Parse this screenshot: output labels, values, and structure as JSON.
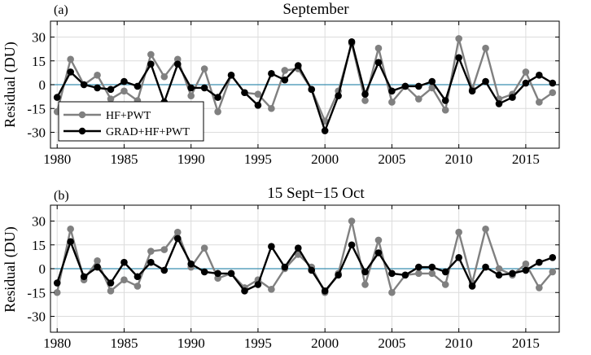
{
  "chart_data": [
    {
      "type": "line",
      "panel_label": "(a)",
      "title": "September",
      "ylabel": "Residual (DU)",
      "xlim": [
        1979.5,
        2017.5
      ],
      "ylim": [
        -40,
        40
      ],
      "xticks": [
        1980,
        1985,
        1990,
        1995,
        2000,
        2005,
        2010,
        2015
      ],
      "yticks": [
        30,
        15,
        0,
        -15,
        -30
      ],
      "grid": true,
      "zero_line_color": "#3a8fb0",
      "legend": {
        "placement": "bottom-left",
        "entries": [
          "HF+PWT",
          "GRAD+HF+PWT"
        ]
      },
      "x": [
        1980,
        1981,
        1982,
        1983,
        1984,
        1985,
        1986,
        1987,
        1988,
        1989,
        1990,
        1991,
        1992,
        1993,
        1994,
        1995,
        1996,
        1997,
        1998,
        1999,
        2000,
        2001,
        2002,
        2003,
        2004,
        2005,
        2006,
        2007,
        2008,
        2009,
        2010,
        2011,
        2012,
        2013,
        2014,
        2015,
        2016,
        2017
      ],
      "series": [
        {
          "name": "HF+PWT",
          "color": "#808080",
          "values": [
            -17,
            16,
            0,
            6,
            -9,
            -4,
            -10,
            19,
            5,
            16,
            -7,
            10,
            -17,
            6,
            -5,
            -6,
            -15,
            9,
            10,
            -3,
            -23,
            -4,
            26,
            -10,
            23,
            -11,
            -1,
            -9,
            -2,
            -16,
            29,
            -3,
            23,
            -9,
            -6,
            8,
            -11,
            -5
          ]
        },
        {
          "name": "GRAD+HF+PWT",
          "color": "#000000",
          "values": [
            -8,
            8,
            0,
            -2,
            -3,
            2,
            -1,
            13,
            -11,
            13,
            -2,
            -2,
            -8,
            6,
            -5,
            -13,
            7,
            3,
            12,
            -3,
            -29,
            -7,
            27,
            -6,
            14,
            -4,
            -1,
            -1,
            2,
            -10,
            17,
            -4,
            2,
            -12,
            -8,
            1,
            6,
            1
          ]
        }
      ]
    },
    {
      "type": "line",
      "panel_label": "(b)",
      "title": "15 Sept−15 Oct",
      "ylabel": "Residual (DU)",
      "xlim": [
        1979.5,
        2017.5
      ],
      "ylim": [
        -40,
        40
      ],
      "xticks": [
        1980,
        1985,
        1990,
        1995,
        2000,
        2005,
        2010,
        2015
      ],
      "yticks": [
        30,
        15,
        0,
        -15,
        -30
      ],
      "grid": true,
      "zero_line_color": "#3a8fb0",
      "x": [
        1980,
        1981,
        1982,
        1983,
        1984,
        1985,
        1986,
        1987,
        1988,
        1989,
        1990,
        1991,
        1992,
        1993,
        1994,
        1995,
        1996,
        1997,
        1998,
        1999,
        2000,
        2001,
        2002,
        2003,
        2004,
        2005,
        2006,
        2007,
        2008,
        2009,
        2010,
        2011,
        2012,
        2013,
        2014,
        2015,
        2016,
        2017
      ],
      "series": [
        {
          "name": "HF+PWT",
          "color": "#808080",
          "values": [
            -15,
            25,
            -7,
            5,
            -14,
            -7,
            -11,
            11,
            12,
            23,
            1,
            13,
            -6,
            -3,
            -12,
            -7,
            -13,
            0,
            9,
            1,
            -15,
            -3,
            30,
            -10,
            18,
            -15,
            -4,
            -3,
            -3,
            -10,
            23,
            -9,
            25,
            0,
            -4,
            3,
            -12,
            -2
          ]
        },
        {
          "name": "GRAD+HF+PWT",
          "color": "#000000",
          "values": [
            -9,
            17,
            -5,
            1,
            -9,
            4,
            -5,
            4,
            -1,
            19,
            3,
            -2,
            -3,
            -3,
            -14,
            -10,
            14,
            1,
            13,
            -1,
            -14,
            -4,
            15,
            -2,
            10,
            -3,
            -4,
            1,
            1,
            -2,
            7,
            -11,
            1,
            -4,
            -3,
            -1,
            4,
            7
          ]
        }
      ]
    }
  ]
}
